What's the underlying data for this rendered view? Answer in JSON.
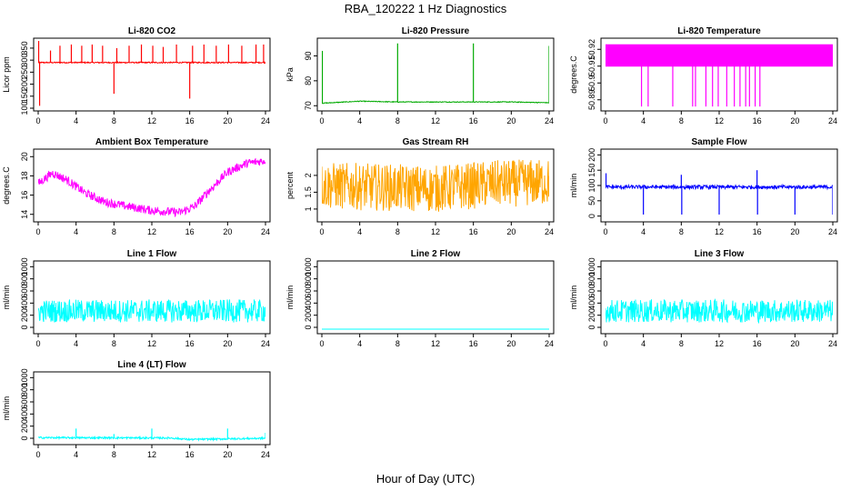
{
  "page": {
    "title": "RBA_120222  1 Hz Diagnostics",
    "xlabel": "Hour of Day (UTC)"
  },
  "chart_data": [
    {
      "type": "line",
      "title": "Li-820 CO2",
      "ylabel": "Licor ppm",
      "color": "#ff0000",
      "xlim": [
        0,
        24
      ],
      "ylim": [
        100,
        380
      ],
      "xticks": [
        0,
        4,
        8,
        12,
        16,
        20,
        24
      ],
      "yticks": [
        100,
        150,
        200,
        250,
        300,
        350
      ],
      "baseline": 290,
      "noise": 5,
      "trend": [],
      "band": null,
      "spikes": [
        [
          0.05,
          380
        ],
        [
          0.15,
          110
        ],
        [
          1.3,
          340
        ],
        [
          2.3,
          360
        ],
        [
          3.5,
          365
        ],
        [
          4.6,
          360
        ],
        [
          5.7,
          365
        ],
        [
          6.8,
          360
        ],
        [
          8.0,
          160
        ],
        [
          8.3,
          350
        ],
        [
          9.6,
          360
        ],
        [
          10.9,
          365
        ],
        [
          12.1,
          360
        ],
        [
          13.2,
          355
        ],
        [
          14.6,
          365
        ],
        [
          16.0,
          140
        ],
        [
          16.3,
          360
        ],
        [
          17.5,
          365
        ],
        [
          18.8,
          360
        ],
        [
          20.1,
          365
        ],
        [
          21.5,
          360
        ],
        [
          23.0,
          365
        ],
        [
          23.8,
          365
        ]
      ]
    },
    {
      "type": "line",
      "title": "Li-820 Pressure",
      "ylabel": "kPa",
      "color": "#00aa00",
      "xlim": [
        0,
        24
      ],
      "ylim": [
        69,
        96
      ],
      "xticks": [
        0,
        4,
        8,
        12,
        16,
        20,
        24
      ],
      "yticks": [
        70,
        80,
        90
      ],
      "baseline": 71.2,
      "noise": 0.3,
      "trend": [
        [
          0,
          71
        ],
        [
          4,
          71.8
        ],
        [
          8,
          71.5
        ],
        [
          12,
          71.5
        ],
        [
          16,
          71.5
        ],
        [
          20,
          71.5
        ],
        [
          24,
          71.2
        ]
      ],
      "band": null,
      "spikes": [
        [
          0.05,
          92
        ],
        [
          8.0,
          95
        ],
        [
          16.0,
          95
        ],
        [
          24.0,
          94
        ]
      ]
    },
    {
      "type": "line",
      "title": "Li-820 Temperature",
      "ylabel": "degrees.C",
      "color": "#ff00ff",
      "xlim": [
        0,
        24
      ],
      "ylim": [
        50.885,
        50.925
      ],
      "xticks": [
        0,
        4,
        8,
        12,
        16,
        20,
        24
      ],
      "yticks": [
        50.89,
        50.9,
        50.91,
        50.92
      ],
      "baseline": 50.91,
      "noise": 0,
      "trend": [],
      "band": [
        50.91,
        50.923
      ],
      "spikes": [
        [
          3.8,
          50.886
        ],
        [
          4.5,
          50.886
        ],
        [
          7.1,
          50.886
        ],
        [
          9.2,
          50.886
        ],
        [
          9.5,
          50.886
        ],
        [
          10.6,
          50.886
        ],
        [
          11.3,
          50.886
        ],
        [
          11.9,
          50.886
        ],
        [
          12.8,
          50.886
        ],
        [
          13.6,
          50.886
        ],
        [
          14.2,
          50.886
        ],
        [
          14.8,
          50.886
        ],
        [
          15.2,
          50.886
        ],
        [
          15.8,
          50.886
        ],
        [
          16.3,
          50.886
        ]
      ]
    },
    {
      "type": "line",
      "title": "Ambient Box Temperature",
      "ylabel": "degrees.C",
      "color": "#ff00ff",
      "xlim": [
        0,
        24
      ],
      "ylim": [
        13.5,
        20.5
      ],
      "xticks": [
        0,
        4,
        8,
        12,
        16,
        20,
        24
      ],
      "yticks": [
        14,
        16,
        18,
        20
      ],
      "baseline": 16,
      "noise": 0.9,
      "trend": [
        [
          0,
          17.2
        ],
        [
          1.5,
          18.3
        ],
        [
          3,
          17.6
        ],
        [
          5,
          16.2
        ],
        [
          7,
          15.3
        ],
        [
          9,
          14.9
        ],
        [
          12,
          14.4
        ],
        [
          15,
          14.2
        ],
        [
          16.5,
          14.8
        ],
        [
          18,
          16.4
        ],
        [
          20,
          18.4
        ],
        [
          22,
          19.3
        ],
        [
          24,
          19.6
        ]
      ],
      "band": null,
      "spikes": []
    },
    {
      "type": "line",
      "title": "Gas Stream RH",
      "ylabel": "percent",
      "color": "#ffa500",
      "xlim": [
        0,
        24
      ],
      "ylim": [
        0.7,
        2.7
      ],
      "xticks": [
        0,
        4,
        8,
        12,
        16,
        20,
        24
      ],
      "yticks": [
        1.0,
        1.5,
        2.0
      ],
      "baseline": 1.7,
      "noise": 1.4,
      "trend": [
        [
          0,
          1.7
        ],
        [
          12,
          1.6
        ],
        [
          18,
          1.75
        ],
        [
          24,
          1.8
        ]
      ],
      "band": null,
      "spikes": []
    },
    {
      "type": "line",
      "title": "Sample Flow",
      "ylabel": "ml/min",
      "color": "#0000ff",
      "xlim": [
        0,
        24
      ],
      "ylim": [
        -10,
        210
      ],
      "xticks": [
        0,
        4,
        8,
        12,
        16,
        20,
        24
      ],
      "yticks": [
        0,
        50,
        100,
        150,
        200
      ],
      "baseline": 95,
      "noise": 12,
      "trend": [],
      "band": null,
      "spikes": [
        [
          0.05,
          140
        ],
        [
          4.0,
          5
        ],
        [
          8.0,
          135
        ],
        [
          8.05,
          5
        ],
        [
          12.0,
          5
        ],
        [
          16.0,
          150
        ],
        [
          16.05,
          5
        ],
        [
          20.0,
          5
        ],
        [
          24.0,
          5
        ]
      ]
    },
    {
      "type": "line",
      "title": "Line 1 Flow",
      "ylabel": "ml/min",
      "color": "#00ffff",
      "xlim": [
        0,
        24
      ],
      "ylim": [
        -60,
        1050
      ],
      "xticks": [
        0,
        4,
        8,
        12,
        16,
        20,
        24
      ],
      "yticks": [
        0,
        200,
        400,
        600,
        800,
        1000
      ],
      "baseline": 270,
      "noise": 380,
      "trend": [],
      "band": null,
      "spikes": []
    },
    {
      "type": "line",
      "title": "Line 2 Flow",
      "ylabel": "ml/min",
      "color": "#00ffff",
      "xlim": [
        0,
        24
      ],
      "ylim": [
        -60,
        1050
      ],
      "xticks": [
        0,
        4,
        8,
        12,
        16,
        20,
        24
      ],
      "yticks": [
        0,
        200,
        400,
        600,
        800,
        1000
      ],
      "baseline": -30,
      "noise": 0,
      "trend": [],
      "band": null,
      "spikes": []
    },
    {
      "type": "line",
      "title": "Line 3 Flow",
      "ylabel": "ml/min",
      "color": "#00ffff",
      "xlim": [
        0,
        24
      ],
      "ylim": [
        -60,
        1050
      ],
      "xticks": [
        0,
        4,
        8,
        12,
        16,
        20,
        24
      ],
      "yticks": [
        0,
        200,
        400,
        600,
        800,
        1000
      ],
      "baseline": 270,
      "noise": 380,
      "trend": [],
      "band": null,
      "spikes": []
    },
    {
      "type": "line",
      "title": "Line 4 (LT) Flow",
      "ylabel": "ml/min",
      "color": "#00ffff",
      "xlim": [
        0,
        24
      ],
      "ylim": [
        -60,
        1050
      ],
      "xticks": [
        0,
        4,
        8,
        12,
        16,
        20,
        24
      ],
      "yticks": [
        0,
        200,
        400,
        600,
        800,
        1000
      ],
      "baseline": 10,
      "noise": 30,
      "trend": [
        [
          0,
          10
        ],
        [
          14,
          5
        ],
        [
          16,
          -20
        ],
        [
          20,
          -10
        ],
        [
          24,
          0
        ]
      ],
      "band": null,
      "spikes": [
        [
          4.0,
          160
        ],
        [
          8.0,
          70
        ],
        [
          12.0,
          160
        ],
        [
          20.0,
          160
        ],
        [
          24.0,
          90
        ]
      ]
    }
  ]
}
